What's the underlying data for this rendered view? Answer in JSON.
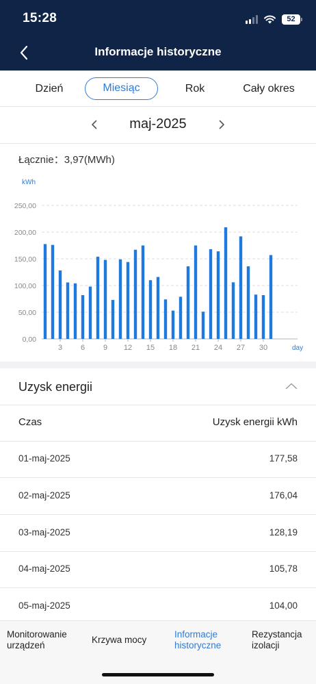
{
  "status_bar": {
    "time": "15:28",
    "battery": "52"
  },
  "header": {
    "title": "Informacje historyczne"
  },
  "tabs": [
    {
      "label": "Dzień",
      "active": false
    },
    {
      "label": "Miesiąc",
      "active": true
    },
    {
      "label": "Rok",
      "active": false
    },
    {
      "label": "Cały okres",
      "active": false
    }
  ],
  "period": {
    "label": "maj-2025"
  },
  "summary": {
    "label": "Łącznie：",
    "value": "3,97(MWh)"
  },
  "chart_data": {
    "type": "bar",
    "ylabel": "kWh",
    "xlabel": "day",
    "ylim": [
      0,
      250
    ],
    "yticks": [
      "0,00",
      "50,00",
      "100,00",
      "150,00",
      "200,00",
      "250,00"
    ],
    "xtick_labels": [
      "3",
      "6",
      "9",
      "12",
      "15",
      "18",
      "21",
      "24",
      "27",
      "30"
    ],
    "xtick_days": [
      3,
      6,
      9,
      12,
      15,
      18,
      21,
      24,
      27,
      30
    ],
    "categories": [
      1,
      2,
      3,
      4,
      5,
      6,
      7,
      8,
      9,
      10,
      11,
      12,
      13,
      14,
      15,
      16,
      17,
      18,
      19,
      20,
      21,
      22,
      23,
      24,
      25,
      26,
      27,
      28,
      29,
      30,
      31
    ],
    "values": [
      177.58,
      176.04,
      128.19,
      105.78,
      104.0,
      82,
      98,
      154,
      148,
      73,
      149,
      144,
      167,
      175,
      110,
      116,
      74,
      53,
      79,
      136,
      175,
      51,
      168,
      164,
      209,
      106,
      192,
      136,
      83,
      82,
      157
    ],
    "color": "#1f7ae0",
    "grid": true
  },
  "energy": {
    "title": "Uzysk energii",
    "col_time": "Czas",
    "col_value": "Uzysk energii kWh",
    "rows": [
      {
        "date": "01-maj-2025",
        "value": "177,58"
      },
      {
        "date": "02-maj-2025",
        "value": "176,04"
      },
      {
        "date": "03-maj-2025",
        "value": "128,19"
      },
      {
        "date": "04-maj-2025",
        "value": "105,78"
      },
      {
        "date": "05-maj-2025",
        "value": "104,00"
      }
    ]
  },
  "bottom_nav": [
    {
      "line1": "Monitorowanie",
      "line2": "urządzeń",
      "active": false
    },
    {
      "line1": "Krzywa mocy",
      "line2": "",
      "active": false
    },
    {
      "line1": "Informacje",
      "line2": "historyczne",
      "active": true
    },
    {
      "line1": "Rezystancja",
      "line2": "izolacji",
      "active": false
    }
  ],
  "icons": {
    "back": "chevron-left-icon",
    "prev": "chevron-left-icon",
    "next": "chevron-right-icon",
    "collapse": "chevron-up-icon",
    "wifi": "wifi-icon",
    "signal": "cellular-signal-icon",
    "battery": "battery-icon"
  },
  "colors": {
    "header_bg": "#0f2447",
    "accent": "#2d7bd6",
    "bar": "#1f7ae0"
  }
}
